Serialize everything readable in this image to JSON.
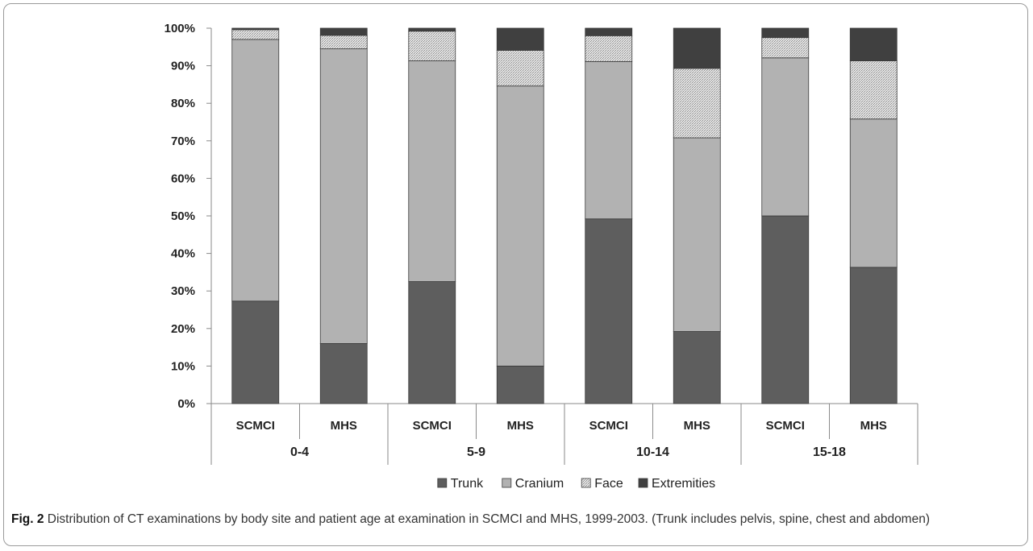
{
  "caption": {
    "fig_label": "Fig. 2",
    "text": "Distribution of CT examinations by body site and patient age at examination in SCMCI and MHS, 1999-2003. (Trunk includes pelvis, spine, chest and abdomen)"
  },
  "colors": {
    "Trunk": "#5e5e5e",
    "Cranium": "#b2b2b2",
    "Face": "#d9d9d9",
    "Extremities": "#404040"
  },
  "chart_data": {
    "type": "bar",
    "stacked": true,
    "percent": true,
    "title": "",
    "xlabel": "",
    "ylabel": "",
    "ylim": [
      0,
      100
    ],
    "yticks": [
      "0%",
      "10%",
      "20%",
      "30%",
      "40%",
      "50%",
      "60%",
      "70%",
      "80%",
      "90%",
      "100%"
    ],
    "groups": [
      "0-4",
      "5-9",
      "10-14",
      "15-18"
    ],
    "categories": [
      "SCMCI",
      "MHS",
      "SCMCI",
      "MHS",
      "SCMCI",
      "MHS",
      "SCMCI",
      "MHS"
    ],
    "legend_position": "bottom",
    "series": [
      {
        "name": "Trunk",
        "values": [
          27.3,
          16.0,
          32.5,
          10.0,
          49.2,
          19.2,
          50.0,
          36.3
        ]
      },
      {
        "name": "Cranium",
        "values": [
          69.7,
          78.5,
          58.8,
          74.6,
          41.9,
          51.6,
          42.1,
          39.5
        ]
      },
      {
        "name": "Face",
        "values": [
          2.6,
          3.6,
          7.9,
          9.5,
          6.9,
          18.5,
          5.4,
          15.5
        ]
      },
      {
        "name": "Extremities",
        "values": [
          0.4,
          1.9,
          0.8,
          5.9,
          2.0,
          10.7,
          2.5,
          8.7
        ]
      }
    ]
  }
}
